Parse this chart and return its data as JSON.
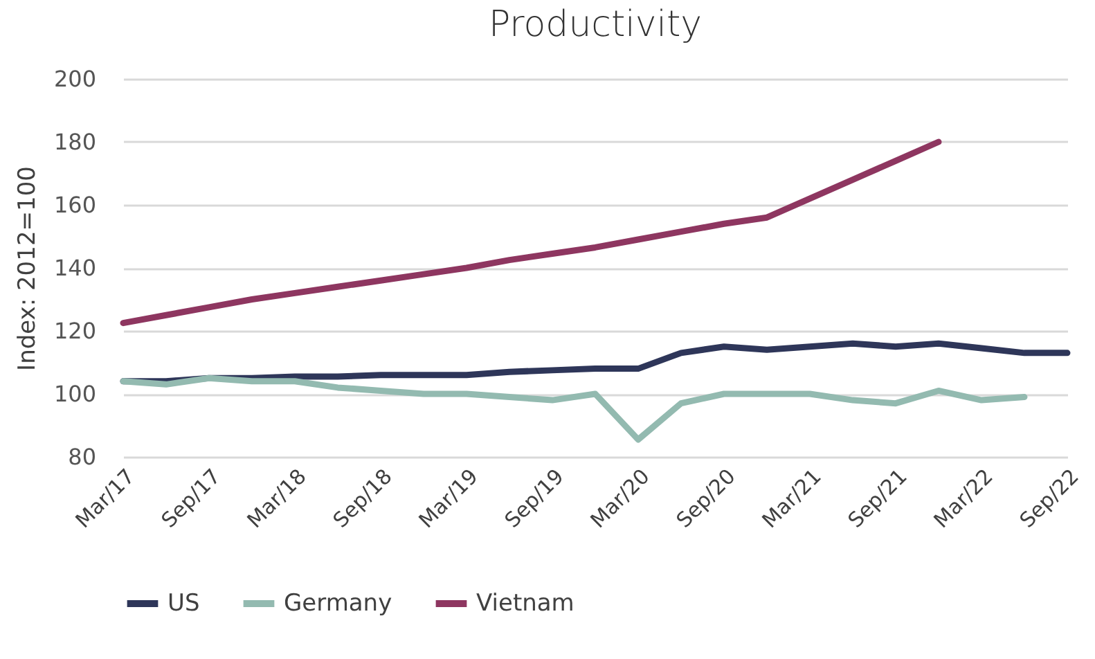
{
  "chart_data": {
    "type": "line",
    "title": "Productivity",
    "ylabel": "Index: 2012=100",
    "categories": [
      "Mar/17",
      null,
      "Sep/17",
      null,
      "Mar/18",
      null,
      "Sep/18",
      null,
      "Mar/19",
      null,
      "Sep/19",
      null,
      "Mar/20",
      null,
      "Sep/20",
      null,
      "Mar/21",
      null,
      "Sep/21",
      null,
      "Mar/22",
      null,
      "Sep/22"
    ],
    "series": [
      {
        "name": "US",
        "color": "#2e3659",
        "values": [
          104,
          104,
          105,
          105,
          105.5,
          105.5,
          106,
          106,
          106,
          107,
          107.5,
          108,
          108,
          113,
          115,
          114,
          115,
          116,
          115,
          116,
          114.5,
          113,
          113
        ]
      },
      {
        "name": "Germany",
        "color": "#93bab0",
        "values": [
          104,
          103,
          105,
          104,
          104,
          102,
          101,
          100,
          100,
          99,
          98,
          100,
          85.5,
          97,
          100,
          100,
          100,
          98,
          97,
          101,
          98,
          99,
          null
        ]
      },
      {
        "name": "Vietnam",
        "color": "#8e3660",
        "values": [
          122.5,
          125,
          127.5,
          130,
          132,
          134,
          136,
          138,
          140,
          142.5,
          144.5,
          146.5,
          149,
          151.5,
          154,
          156,
          162,
          168,
          174,
          180,
          null,
          null,
          null
        ]
      }
    ],
    "ylim": [
      80,
      200
    ],
    "yticks": [
      80,
      100,
      120,
      140,
      160,
      180,
      200
    ],
    "grid": "y",
    "legend": "bottom",
    "line_style": "solid"
  }
}
